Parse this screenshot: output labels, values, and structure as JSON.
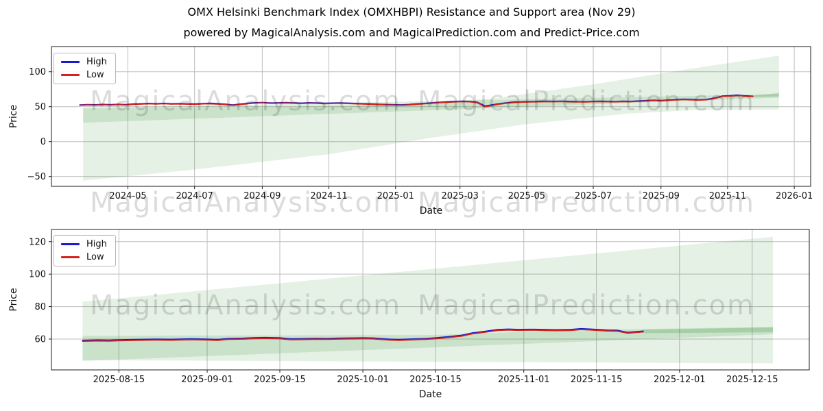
{
  "page": {
    "title": "OMX Helsinki Benchmark Index (OMXHBPI) Resistance and Support area (Nov 29)",
    "subtitle": "powered by MagicalAnalysis.com and MagicalPrediction.com and Predict-Price.com"
  },
  "watermarks": {
    "left": "MagicalAnalysis.com",
    "right": "MagicalPrediction.com"
  },
  "colors": {
    "high": "#1a1acd",
    "low": "#d42222",
    "band": "#2e8b2e",
    "grid": "#bdbdbd",
    "spine": "#1a1a1a"
  },
  "chart_data": [
    {
      "type": "line",
      "xlabel": "Date",
      "ylabel": "Price",
      "grid": true,
      "legend_position": "upper left",
      "x_range": [
        "2024-02-21",
        "2026-01-16"
      ],
      "y_range": [
        -64,
        136
      ],
      "y_ticks": [
        -50,
        0,
        50,
        100
      ],
      "x_ticks": [
        {
          "date": "2024-05-01",
          "label": "2024-05"
        },
        {
          "date": "2024-07-01",
          "label": "2024-07"
        },
        {
          "date": "2024-09-01",
          "label": "2024-09"
        },
        {
          "date": "2024-11-01",
          "label": "2024-11"
        },
        {
          "date": "2025-01-01",
          "label": "2025-01"
        },
        {
          "date": "2025-03-01",
          "label": "2025-03"
        },
        {
          "date": "2025-05-01",
          "label": "2025-05"
        },
        {
          "date": "2025-07-01",
          "label": "2025-07"
        },
        {
          "date": "2025-09-01",
          "label": "2025-09"
        },
        {
          "date": "2025-11-01",
          "label": "2025-11"
        },
        {
          "date": "2026-01-01",
          "label": "2026-01"
        }
      ],
      "bands": [
        {
          "name": "support-resistance-fan-light",
          "opacity": 0.12,
          "points": [
            [
              "2024-03-21",
              48
            ],
            [
              "2024-09-01",
              49.5
            ],
            [
              "2025-01-01",
              52.5
            ],
            [
              "2025-04-01",
              62
            ],
            [
              "2025-07-01",
              82
            ],
            [
              "2025-10-01",
              105
            ],
            [
              "2025-12-18",
              123
            ],
            [
              "2025-12-18",
              46
            ],
            [
              "2025-10-01",
              45
            ],
            [
              "2025-08-01",
              40
            ],
            [
              "2025-05-01",
              25
            ],
            [
              "2025-02-01",
              5
            ],
            [
              "2024-11-01",
              -18
            ],
            [
              "2024-07-01",
              -40
            ],
            [
              "2024-03-21",
              -56
            ]
          ]
        },
        {
          "name": "support-resistance-band-medium",
          "opacity": 0.15,
          "points": [
            [
              "2024-03-21",
              48
            ],
            [
              "2025-12-18",
              68
            ],
            [
              "2025-12-18",
              63
            ],
            [
              "2024-03-21",
              27
            ]
          ]
        },
        {
          "name": "forecast-stub-dark",
          "opacity": 0.22,
          "points": [
            [
              "2025-11-24",
              66
            ],
            [
              "2025-12-18",
              69.5
            ],
            [
              "2025-12-18",
              64.5
            ],
            [
              "2025-11-24",
              63.8
            ]
          ]
        }
      ],
      "dates": [
        "2024-03-18",
        "2024-03-25",
        "2024-04-01",
        "2024-04-08",
        "2024-04-15",
        "2024-04-22",
        "2024-04-29",
        "2024-05-06",
        "2024-05-13",
        "2024-05-20",
        "2024-05-27",
        "2024-06-03",
        "2024-06-10",
        "2024-06-17",
        "2024-06-24",
        "2024-07-01",
        "2024-07-08",
        "2024-07-15",
        "2024-07-22",
        "2024-07-29",
        "2024-08-05",
        "2024-08-12",
        "2024-08-19",
        "2024-08-26",
        "2024-09-02",
        "2024-09-09",
        "2024-09-16",
        "2024-09-23",
        "2024-09-30",
        "2024-10-07",
        "2024-10-14",
        "2024-10-21",
        "2024-10-28",
        "2024-11-04",
        "2024-11-11",
        "2024-11-18",
        "2024-11-25",
        "2024-12-02",
        "2024-12-09",
        "2024-12-16",
        "2024-12-23",
        "2024-12-30",
        "2025-01-06",
        "2025-01-13",
        "2025-01-20",
        "2025-01-27",
        "2025-02-03",
        "2025-02-10",
        "2025-02-17",
        "2025-02-24",
        "2025-03-03",
        "2025-03-10",
        "2025-03-17",
        "2025-03-24",
        "2025-03-31",
        "2025-04-07",
        "2025-04-14",
        "2025-04-21",
        "2025-04-28",
        "2025-05-05",
        "2025-05-12",
        "2025-05-19",
        "2025-05-26",
        "2025-06-02",
        "2025-06-09",
        "2025-06-16",
        "2025-06-23",
        "2025-06-30",
        "2025-07-07",
        "2025-07-14",
        "2025-07-21",
        "2025-07-28",
        "2025-08-04",
        "2025-08-11",
        "2025-08-18",
        "2025-08-25",
        "2025-09-01",
        "2025-09-08",
        "2025-09-15",
        "2025-09-22",
        "2025-09-29",
        "2025-10-06",
        "2025-10-13",
        "2025-10-20",
        "2025-10-27",
        "2025-11-03",
        "2025-11-10",
        "2025-11-17",
        "2025-11-24"
      ],
      "series": [
        {
          "name": "High",
          "color": "#1a1acd",
          "values": [
            52.6,
            53.1,
            52.8,
            53.3,
            52.9,
            53.4,
            53.0,
            53.8,
            54.2,
            54.7,
            54.3,
            54.8,
            54.2,
            54.5,
            54.1,
            53.9,
            54.5,
            54.9,
            54.3,
            53.6,
            52.6,
            53.7,
            54.9,
            55.7,
            56.0,
            55.3,
            55.6,
            55.9,
            55.5,
            55.1,
            55.7,
            55.3,
            54.9,
            55.2,
            55.5,
            55.1,
            54.7,
            54.3,
            53.9,
            53.5,
            53.2,
            52.9,
            52.7,
            53.2,
            53.9,
            54.7,
            55.5,
            56.2,
            56.9,
            57.5,
            57.9,
            57.6,
            56.3,
            50.9,
            52.8,
            54.4,
            55.8,
            56.6,
            57.1,
            57.4,
            57.6,
            57.9,
            57.7,
            58.0,
            57.7,
            57.5,
            57.2,
            57.7,
            57.9,
            57.7,
            57.5,
            57.9,
            57.7,
            58.2,
            58.7,
            59.2,
            58.9,
            59.5,
            60.2,
            60.7,
            60.3,
            59.9,
            60.5,
            62.3,
            65.2,
            65.7,
            66.6,
            65.5,
            65.0
          ]
        },
        {
          "name": "Low",
          "color": "#d42222",
          "values": [
            52.0,
            52.5,
            52.2,
            52.7,
            52.3,
            52.8,
            52.4,
            53.2,
            53.6,
            54.1,
            53.7,
            54.2,
            53.6,
            53.9,
            53.5,
            53.3,
            53.9,
            54.3,
            53.7,
            53.0,
            51.9,
            53.1,
            54.3,
            55.1,
            55.4,
            54.7,
            55.0,
            55.3,
            54.9,
            54.5,
            55.1,
            54.7,
            54.3,
            54.6,
            54.9,
            54.5,
            54.1,
            53.7,
            53.3,
            52.9,
            52.6,
            52.3,
            52.1,
            52.6,
            53.3,
            54.1,
            54.9,
            55.6,
            56.3,
            56.9,
            57.3,
            57.0,
            55.5,
            49.8,
            52.0,
            53.8,
            55.2,
            56.0,
            56.5,
            56.8,
            57.0,
            57.3,
            57.1,
            57.4,
            57.1,
            56.9,
            56.6,
            57.1,
            57.3,
            57.1,
            56.9,
            57.3,
            57.1,
            57.6,
            58.1,
            58.6,
            58.3,
            58.9,
            59.6,
            60.1,
            59.7,
            59.3,
            59.9,
            61.6,
            64.6,
            65.1,
            66.0,
            64.9,
            64.4
          ]
        }
      ]
    },
    {
      "type": "line",
      "xlabel": "Date",
      "ylabel": "Price",
      "grid": true,
      "legend_position": "upper left",
      "x_range": [
        "2025-08-02",
        "2025-12-26"
      ],
      "y_range": [
        41,
        127.5
      ],
      "y_ticks": [
        60,
        80,
        100,
        120
      ],
      "x_ticks": [
        {
          "date": "2025-08-15",
          "label": "2025-08-15"
        },
        {
          "date": "2025-09-01",
          "label": "2025-09-01"
        },
        {
          "date": "2025-09-15",
          "label": "2025-09-15"
        },
        {
          "date": "2025-10-01",
          "label": "2025-10-01"
        },
        {
          "date": "2025-10-15",
          "label": "2025-10-15"
        },
        {
          "date": "2025-11-01",
          "label": "2025-11-01"
        },
        {
          "date": "2025-11-15",
          "label": "2025-11-15"
        },
        {
          "date": "2025-12-01",
          "label": "2025-12-01"
        },
        {
          "date": "2025-12-15",
          "label": "2025-12-15"
        }
      ],
      "bands": [
        {
          "name": "support-resistance-fan-light",
          "opacity": 0.12,
          "points": [
            [
              "2025-08-08",
              83
            ],
            [
              "2025-12-19",
              123
            ],
            [
              "2025-12-19",
              45
            ],
            [
              "2025-08-08",
              47
            ]
          ]
        },
        {
          "name": "support-resistance-band-medium",
          "opacity": 0.15,
          "points": [
            [
              "2025-08-08",
              62
            ],
            [
              "2025-10-15",
              62.5
            ],
            [
              "2025-11-10",
              65.5
            ],
            [
              "2025-12-19",
              67.5
            ],
            [
              "2025-12-19",
              63
            ],
            [
              "2025-08-08",
              46.5
            ]
          ]
        },
        {
          "name": "forecast-stub-dark",
          "opacity": 0.22,
          "points": [
            [
              "2025-11-24",
              65.8
            ],
            [
              "2025-12-19",
              67.2
            ],
            [
              "2025-12-19",
              64.2
            ],
            [
              "2025-11-24",
              63.6
            ]
          ]
        }
      ],
      "dates": [
        "2025-08-08",
        "2025-08-11",
        "2025-08-13",
        "2025-08-15",
        "2025-08-18",
        "2025-08-20",
        "2025-08-22",
        "2025-08-25",
        "2025-08-27",
        "2025-08-29",
        "2025-09-01",
        "2025-09-03",
        "2025-09-05",
        "2025-09-08",
        "2025-09-10",
        "2025-09-12",
        "2025-09-15",
        "2025-09-17",
        "2025-09-19",
        "2025-09-22",
        "2025-09-24",
        "2025-09-26",
        "2025-09-29",
        "2025-10-01",
        "2025-10-03",
        "2025-10-06",
        "2025-10-08",
        "2025-10-10",
        "2025-10-13",
        "2025-10-15",
        "2025-10-17",
        "2025-10-20",
        "2025-10-22",
        "2025-10-24",
        "2025-10-27",
        "2025-10-29",
        "2025-10-31",
        "2025-11-03",
        "2025-11-05",
        "2025-11-07",
        "2025-11-10",
        "2025-11-12",
        "2025-11-14",
        "2025-11-17",
        "2025-11-19",
        "2025-11-21",
        "2025-11-24"
      ],
      "series": [
        {
          "name": "High",
          "color": "#1a1acd",
          "values": [
            59.2,
            59.4,
            59.3,
            59.5,
            59.7,
            59.8,
            59.9,
            59.8,
            60.0,
            60.1,
            59.9,
            59.7,
            60.3,
            60.5,
            60.8,
            60.9,
            60.7,
            60.1,
            60.2,
            60.4,
            60.3,
            60.5,
            60.6,
            60.7,
            60.6,
            59.9,
            59.7,
            60.0,
            60.3,
            60.7,
            61.3,
            62.3,
            63.7,
            64.5,
            65.8,
            66.1,
            65.9,
            66.0,
            65.8,
            65.7,
            65.8,
            66.4,
            66.1,
            65.5,
            65.4,
            64.1,
            64.9
          ]
        },
        {
          "name": "Low",
          "color": "#d42222",
          "values": [
            58.7,
            58.9,
            58.8,
            59.0,
            59.2,
            59.3,
            59.4,
            59.3,
            59.5,
            59.6,
            59.4,
            59.2,
            59.8,
            60.0,
            60.3,
            60.4,
            60.2,
            59.6,
            59.7,
            59.9,
            59.8,
            60.0,
            60.1,
            60.2,
            60.1,
            59.4,
            59.2,
            59.5,
            59.8,
            60.2,
            60.8,
            61.8,
            63.2,
            64.0,
            65.3,
            65.6,
            65.4,
            65.5,
            65.3,
            65.2,
            65.3,
            65.9,
            65.6,
            65.0,
            64.9,
            63.6,
            64.4
          ]
        }
      ]
    }
  ]
}
